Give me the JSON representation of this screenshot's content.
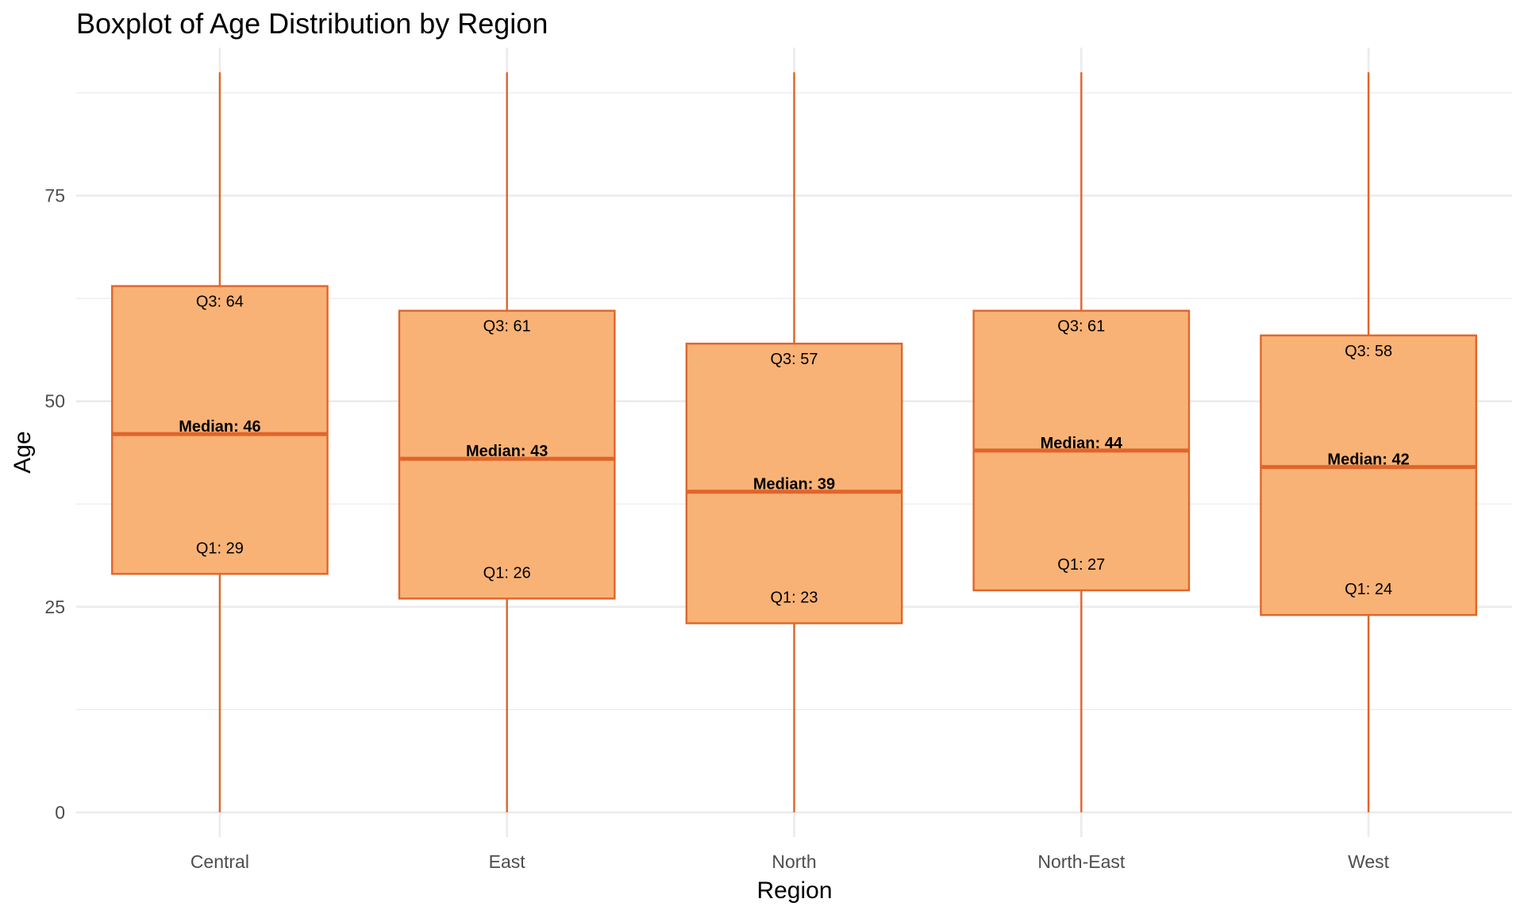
{
  "chart_data": {
    "type": "boxplot",
    "title": "Boxplot of Age Distribution by Region",
    "xlabel": "Region",
    "ylabel": "Age",
    "ylim": [
      -3,
      93
    ],
    "yticks": [
      0,
      25,
      50,
      75
    ],
    "grid": true,
    "legend": "none",
    "colors": {
      "box_fill": "#f9b275",
      "box_stroke": "#e0652b",
      "grid": "#ebebeb",
      "tick_text": "#4d4d4d"
    },
    "categories": [
      "Central",
      "East",
      "North",
      "North-East",
      "West"
    ],
    "boxes": [
      {
        "category": "Central",
        "min": 0,
        "q1": 29,
        "median": 46,
        "q3": 64,
        "max": 90,
        "q1_label": "Q1: 29",
        "median_label": "Median: 46",
        "q3_label": "Q3: 64"
      },
      {
        "category": "East",
        "min": 0,
        "q1": 26,
        "median": 43,
        "q3": 61,
        "max": 90,
        "q1_label": "Q1: 26",
        "median_label": "Median: 43",
        "q3_label": "Q3: 61"
      },
      {
        "category": "North",
        "min": 0,
        "q1": 23,
        "median": 39,
        "q3": 57,
        "max": 90,
        "q1_label": "Q1: 23",
        "median_label": "Median: 39",
        "q3_label": "Q3: 57"
      },
      {
        "category": "North-East",
        "min": 0,
        "q1": 27,
        "median": 44,
        "q3": 61,
        "max": 90,
        "q1_label": "Q1: 27",
        "median_label": "Median: 44",
        "q3_label": "Q3: 61"
      },
      {
        "category": "West",
        "min": 0,
        "q1": 24,
        "median": 42,
        "q3": 58,
        "max": 90,
        "q1_label": "Q1: 24",
        "median_label": "Median: 42",
        "q3_label": "Q3: 58"
      }
    ]
  }
}
